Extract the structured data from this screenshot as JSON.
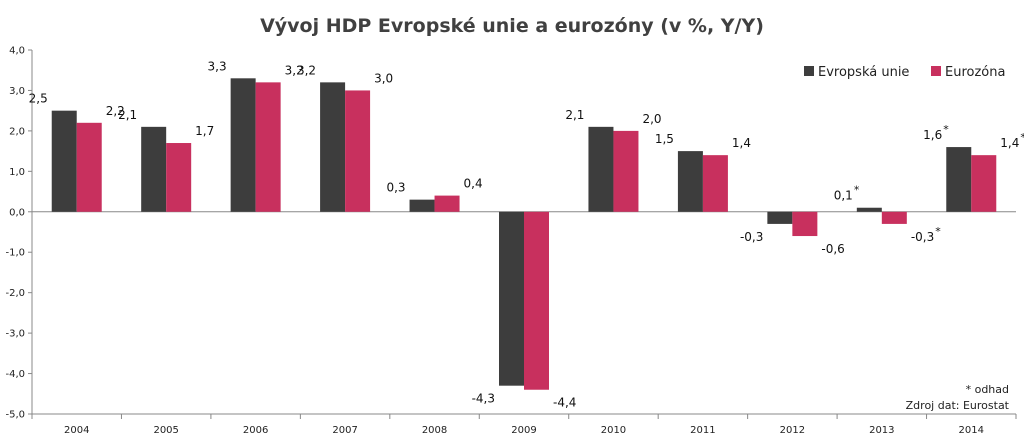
{
  "chart_data": {
    "type": "bar",
    "title": "Vývoj HDP Evropské unie a eurozóny (v %, Y/Y)",
    "categories": [
      "2004",
      "2005",
      "2006",
      "2007",
      "2008",
      "2009",
      "2010",
      "2011",
      "2012",
      "2013",
      "2014"
    ],
    "series": [
      {
        "name": "Evropská unie",
        "color": "#3d3d3d",
        "values": [
          2.5,
          2.1,
          3.3,
          3.2,
          0.3,
          -4.3,
          2.1,
          1.5,
          -0.3,
          0.1,
          1.6
        ],
        "labels": [
          "2,5",
          "2,1",
          "3,3",
          "3,2",
          "0,3",
          "-4,3",
          "2,1",
          "1,5",
          "-0,3",
          "0,1",
          "1,6"
        ],
        "estimate": [
          false,
          false,
          false,
          false,
          false,
          false,
          false,
          false,
          false,
          true,
          true
        ]
      },
      {
        "name": "Eurozóna",
        "color": "#c8305e",
        "values": [
          2.2,
          1.7,
          3.2,
          3.0,
          0.4,
          -4.4,
          2.0,
          1.4,
          -0.6,
          -0.3,
          1.4
        ],
        "labels": [
          "2,2",
          "1,7",
          "3,2",
          "3,0",
          "0,4",
          "-4,4",
          "2,0",
          "1,4",
          "-0,6",
          "-0,3",
          "1,4"
        ],
        "estimate": [
          false,
          false,
          false,
          false,
          false,
          false,
          false,
          false,
          false,
          true,
          true
        ]
      }
    ],
    "ylim": [
      -5.0,
      4.0
    ],
    "yticks": [
      "4,0",
      "3,0",
      "2,0",
      "1,0",
      "0,0",
      "-1,0",
      "-2,0",
      "-3,0",
      "-4,0",
      "-5,0"
    ],
    "legend_position": "top-right",
    "estimate_marker": "*",
    "grid": false
  },
  "notes": {
    "estimate": "* odhad",
    "source": "Zdroj dat: Eurostat"
  }
}
